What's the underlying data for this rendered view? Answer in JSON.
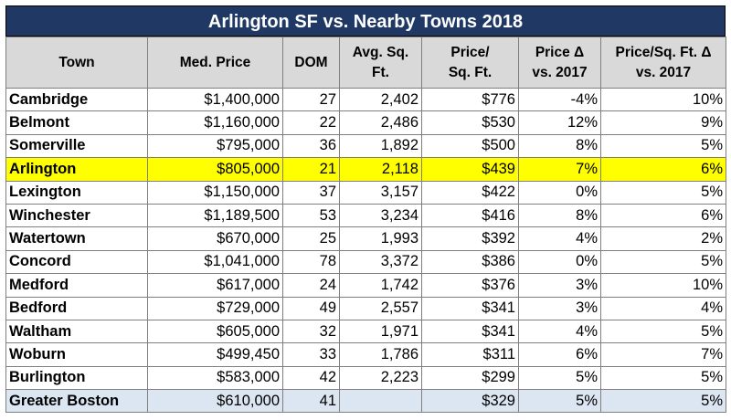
{
  "title": "Arlington SF vs. Nearby Towns 2018",
  "colors": {
    "title_bg": "#1f3864",
    "header_bg": "#d9d9d9",
    "highlight": "#ffff00",
    "summary_bg": "#dce6f2"
  },
  "headers": {
    "town": "Town",
    "med_price": "Med. Price",
    "dom": "DOM",
    "avg_sqft_1": "Avg. Sq.",
    "avg_sqft_2": "Ft.",
    "price_sqft_1": "Price/",
    "price_sqft_2": "Sq. Ft.",
    "price_delta_1": "Price Δ",
    "price_delta_2": "vs. 2017",
    "psf_delta_1": "Price/Sq. Ft. Δ",
    "psf_delta_2": "vs. 2017"
  },
  "rows": [
    {
      "town": "Cambridge",
      "med_price": "$1,400,000",
      "dom": "27",
      "avg_sqft": "2,402",
      "price_sqft": "$776",
      "price_delta": "-4%",
      "psf_delta": "10%"
    },
    {
      "town": "Belmont",
      "med_price": "$1,160,000",
      "dom": "22",
      "avg_sqft": "2,486",
      "price_sqft": "$530",
      "price_delta": "12%",
      "psf_delta": "9%"
    },
    {
      "town": "Somerville",
      "med_price": "$795,000",
      "dom": "36",
      "avg_sqft": "1,892",
      "price_sqft": "$500",
      "price_delta": "8%",
      "psf_delta": "5%"
    },
    {
      "town": "Arlington",
      "med_price": "$805,000",
      "dom": "21",
      "avg_sqft": "2,118",
      "price_sqft": "$439",
      "price_delta": "7%",
      "psf_delta": "6%"
    },
    {
      "town": "Lexington",
      "med_price": "$1,150,000",
      "dom": "37",
      "avg_sqft": "3,157",
      "price_sqft": "$422",
      "price_delta": "0%",
      "psf_delta": "5%"
    },
    {
      "town": "Winchester",
      "med_price": "$1,189,500",
      "dom": "53",
      "avg_sqft": "3,234",
      "price_sqft": "$416",
      "price_delta": "8%",
      "psf_delta": "6%"
    },
    {
      "town": "Watertown",
      "med_price": "$670,000",
      "dom": "25",
      "avg_sqft": "1,993",
      "price_sqft": "$392",
      "price_delta": "4%",
      "psf_delta": "2%"
    },
    {
      "town": "Concord",
      "med_price": "$1,041,000",
      "dom": "78",
      "avg_sqft": "3,372",
      "price_sqft": "$386",
      "price_delta": "0%",
      "psf_delta": "5%"
    },
    {
      "town": "Medford",
      "med_price": "$617,000",
      "dom": "24",
      "avg_sqft": "1,742",
      "price_sqft": "$376",
      "price_delta": "3%",
      "psf_delta": "10%"
    },
    {
      "town": "Bedford",
      "med_price": "$729,000",
      "dom": "49",
      "avg_sqft": "2,557",
      "price_sqft": "$341",
      "price_delta": "3%",
      "psf_delta": "4%"
    },
    {
      "town": "Waltham",
      "med_price": "$605,000",
      "dom": "32",
      "avg_sqft": "1,971",
      "price_sqft": "$341",
      "price_delta": "4%",
      "psf_delta": "5%"
    },
    {
      "town": "Woburn",
      "med_price": "$499,450",
      "dom": "33",
      "avg_sqft": "1,786",
      "price_sqft": "$311",
      "price_delta": "6%",
      "psf_delta": "7%"
    },
    {
      "town": "Burlington",
      "med_price": "$583,000",
      "dom": "42",
      "avg_sqft": "2,223",
      "price_sqft": "$299",
      "price_delta": "5%",
      "psf_delta": "5%"
    },
    {
      "town": "Greater Boston",
      "med_price": "$610,000",
      "dom": "41",
      "avg_sqft": "",
      "price_sqft": "$329",
      "price_delta": "5%",
      "psf_delta": "5%"
    }
  ]
}
